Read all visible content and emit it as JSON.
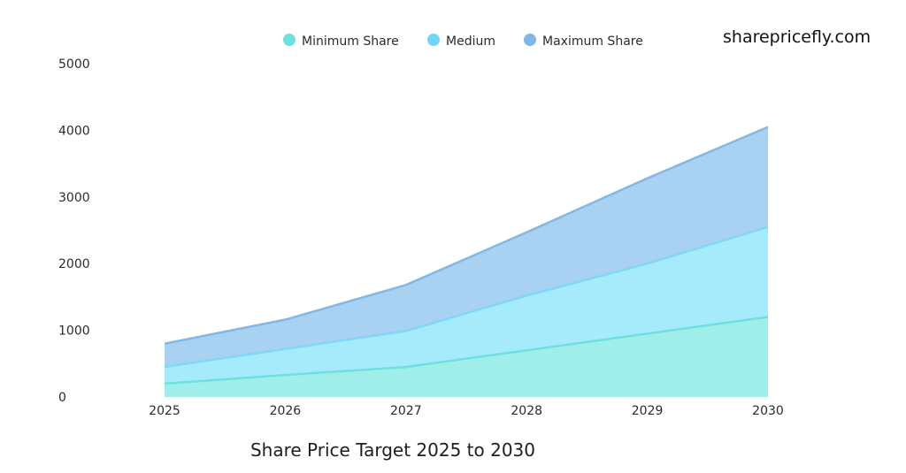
{
  "site": "sharepricefly.com",
  "chart_data": {
    "type": "area",
    "title": "Share Price Target 2025 to 2030",
    "xlabel": "",
    "ylabel": "",
    "categories": [
      "2025",
      "2026",
      "2027",
      "2028",
      "2029",
      "2030"
    ],
    "ylim": [
      0,
      5000
    ],
    "yticks": [
      0,
      1000,
      2000,
      3000,
      4000,
      5000
    ],
    "legend_position": "top",
    "grid": false,
    "series": [
      {
        "name": "Minimum Share",
        "values": [
          200,
          330,
          450,
          700,
          950,
          1200
        ],
        "color": "#7fe6e4"
      },
      {
        "name": "Medium",
        "values": [
          450,
          720,
          990,
          1520,
          2000,
          2550
        ],
        "color": "#7fdcf7"
      },
      {
        "name": "Maximum Share",
        "values": [
          800,
          1160,
          1680,
          2470,
          3280,
          4050
        ],
        "color": "#88bfeb"
      }
    ]
  }
}
